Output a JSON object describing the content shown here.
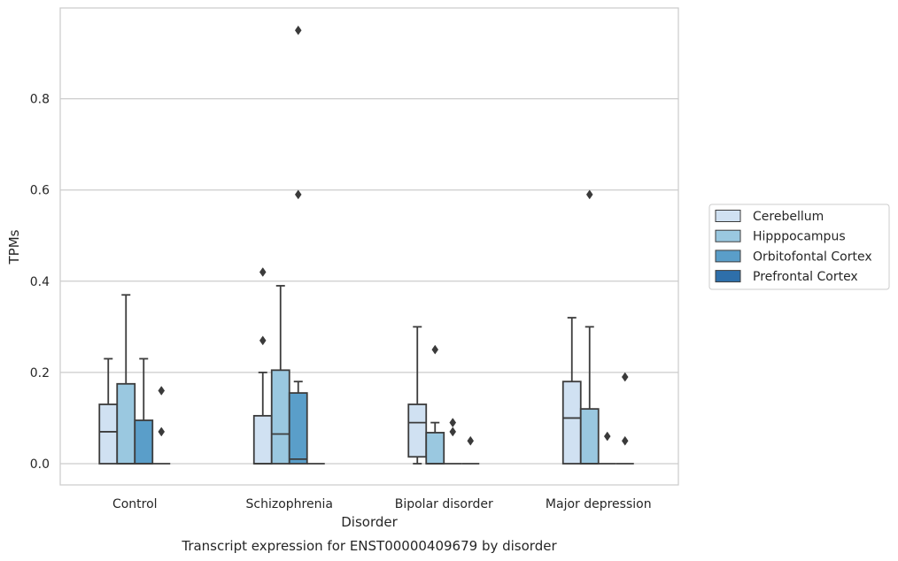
{
  "chart_data": {
    "type": "box",
    "caption": "Transcript expression for ENST00000409679 by disorder",
    "xlabel": "Disorder",
    "ylabel": "TPMs",
    "ylim": [
      -0.045,
      0.985
    ],
    "yticks": [
      0.0,
      0.2,
      0.4,
      0.6,
      0.8
    ],
    "ytick_labels": [
      "0.0",
      "0.2",
      "0.4",
      "0.6",
      "0.8"
    ],
    "grid": "horizontal",
    "legend_position": "center-right",
    "categories": [
      "Control",
      "Schizophrenia",
      "Bipolar disorder",
      "Major depression"
    ],
    "series": [
      {
        "name": "Cerebellum",
        "color": "#d0e1f2",
        "boxes": [
          {
            "whisker_low": 0.0,
            "q1": 0.0,
            "median": 0.07,
            "q3": 0.13,
            "whisker_high": 0.23,
            "outliers": []
          },
          {
            "whisker_low": 0.0,
            "q1": 0.0,
            "median": 0.0,
            "q3": 0.105,
            "whisker_high": 0.2,
            "outliers": [
              0.27,
              0.42
            ]
          },
          {
            "whisker_low": 0.0,
            "q1": 0.015,
            "median": 0.09,
            "q3": 0.13,
            "whisker_high": 0.3,
            "outliers": []
          },
          {
            "whisker_low": 0.0,
            "q1": 0.0,
            "median": 0.1,
            "q3": 0.18,
            "whisker_high": 0.32,
            "outliers": []
          }
        ]
      },
      {
        "name": "Hipppocampus",
        "color": "#9ac8e0",
        "boxes": [
          {
            "whisker_low": 0.0,
            "q1": 0.0,
            "median": 0.0,
            "q3": 0.175,
            "whisker_high": 0.37,
            "outliers": []
          },
          {
            "whisker_low": 0.0,
            "q1": 0.0,
            "median": 0.065,
            "q3": 0.205,
            "whisker_high": 0.39,
            "outliers": []
          },
          {
            "whisker_low": 0.0,
            "q1": 0.0,
            "median": 0.0,
            "q3": 0.068,
            "whisker_high": 0.09,
            "outliers": [
              0.25
            ]
          },
          {
            "whisker_low": 0.0,
            "q1": 0.0,
            "median": 0.0,
            "q3": 0.12,
            "whisker_high": 0.3,
            "outliers": [
              0.59
            ]
          }
        ]
      },
      {
        "name": "Orbitofontal Cortex",
        "color": "#5a9ec9",
        "boxes": [
          {
            "whisker_low": 0.0,
            "q1": 0.0,
            "median": 0.0,
            "q3": 0.095,
            "whisker_high": 0.23,
            "outliers": []
          },
          {
            "whisker_low": 0.0,
            "q1": 0.0,
            "median": 0.01,
            "q3": 0.155,
            "whisker_high": 0.18,
            "outliers": [
              0.59,
              0.95
            ]
          },
          {
            "whisker_low": 0.0,
            "q1": 0.0,
            "median": 0.0,
            "q3": 0.0,
            "whisker_high": 0.0,
            "outliers": [
              0.07,
              0.09
            ]
          },
          {
            "whisker_low": 0.0,
            "q1": 0.0,
            "median": 0.0,
            "q3": 0.0,
            "whisker_high": 0.0,
            "outliers": [
              0.06
            ]
          }
        ]
      },
      {
        "name": "Prefrontal Cortex",
        "color": "#2e6faa",
        "boxes": [
          {
            "whisker_low": 0.0,
            "q1": 0.0,
            "median": 0.0,
            "q3": 0.0,
            "whisker_high": 0.0,
            "outliers": [
              0.07,
              0.16
            ]
          },
          {
            "whisker_low": 0.0,
            "q1": 0.0,
            "median": 0.0,
            "q3": 0.0,
            "whisker_high": 0.0,
            "outliers": []
          },
          {
            "whisker_low": 0.0,
            "q1": 0.0,
            "median": 0.0,
            "q3": 0.0,
            "whisker_high": 0.0,
            "outliers": [
              0.05
            ]
          },
          {
            "whisker_low": 0.0,
            "q1": 0.0,
            "median": 0.0,
            "q3": 0.0,
            "whisker_high": 0.0,
            "outliers": [
              0.05,
              0.19
            ]
          }
        ]
      }
    ]
  }
}
